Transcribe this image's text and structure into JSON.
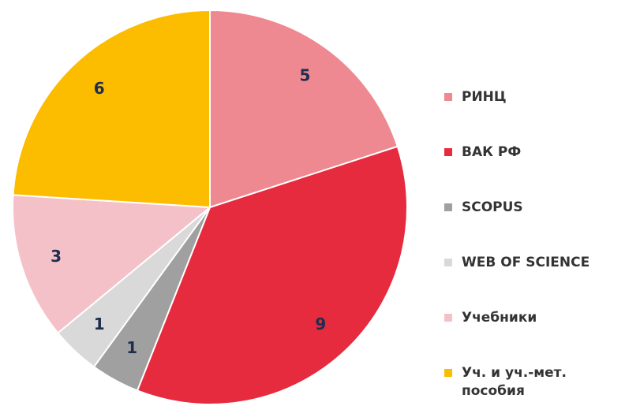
{
  "chart_data": {
    "type": "pie",
    "categories": [
      "РИНЦ",
      "ВАК РФ",
      "SCOPUS",
      "WEB OF SCIENCE",
      "Учебники",
      "Уч. и уч.-мет. пособия"
    ],
    "values": [
      5,
      9,
      1,
      1,
      3,
      6
    ],
    "colors": [
      "#ee8891",
      "#e52b3d",
      "#a0a0a0",
      "#d9d9d9",
      "#f5c1c8",
      "#fcbc00"
    ],
    "legend": "right"
  }
}
